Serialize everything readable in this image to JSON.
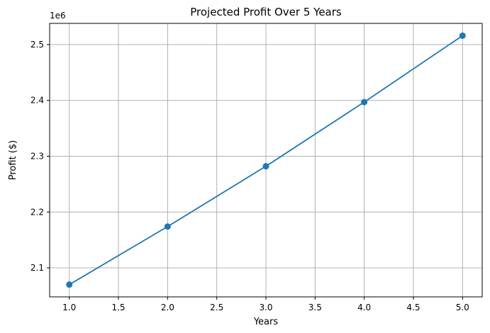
{
  "chart_data": {
    "type": "line",
    "title": "Projected Profit Over 5 Years",
    "xlabel": "Years",
    "ylabel": "Profit ($)",
    "y_offset_text": "1e6",
    "xlim": [
      0.8,
      5.2
    ],
    "ylim": [
      2.048,
      2.538
    ],
    "x_ticks": [
      1.0,
      1.5,
      2.0,
      2.5,
      3.0,
      3.5,
      4.0,
      4.5,
      5.0
    ],
    "x_tick_labels": [
      "1.0",
      "1.5",
      "2.0",
      "2.5",
      "3.0",
      "3.5",
      "4.0",
      "4.5",
      "5.0"
    ],
    "y_ticks": [
      2.1,
      2.2,
      2.3,
      2.4,
      2.5
    ],
    "y_tick_labels": [
      "2.1",
      "2.2",
      "2.3",
      "2.4",
      "2.5"
    ],
    "grid": true,
    "series": [
      {
        "color": "#1f77b4",
        "marker": "circle",
        "x": [
          1,
          2,
          3,
          4,
          5
        ],
        "y": [
          2.07,
          2.174,
          2.282,
          2.397,
          2.516
        ]
      }
    ]
  }
}
